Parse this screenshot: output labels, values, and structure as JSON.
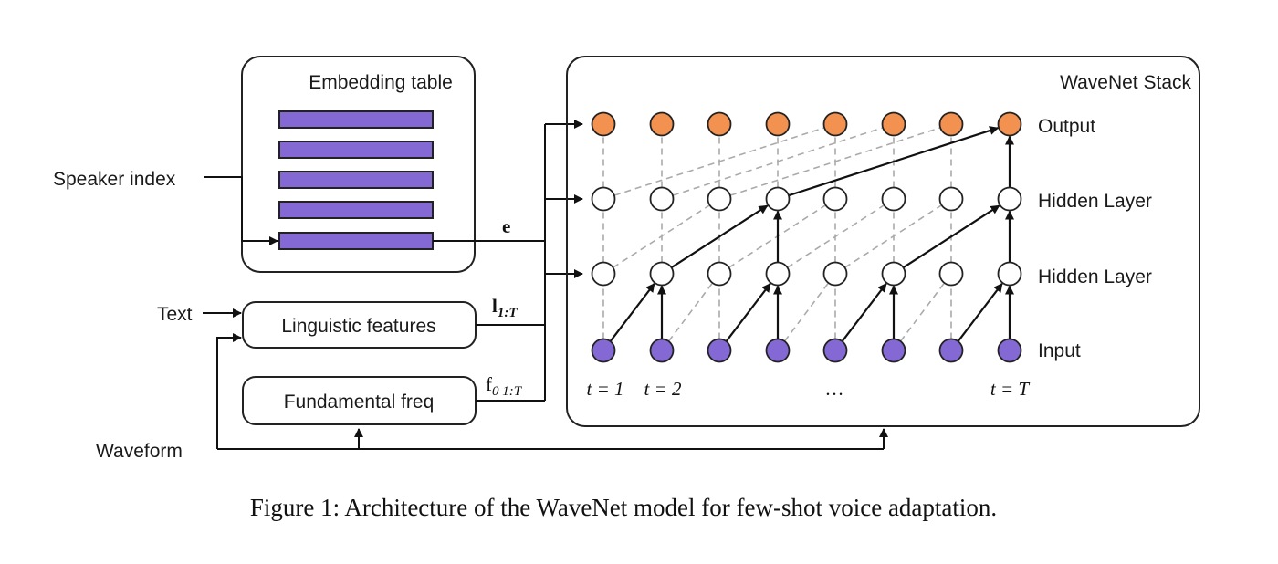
{
  "embedding": {
    "title": "Embedding table"
  },
  "wavenet": {
    "title": "WaveNet Stack",
    "layers": {
      "output": "Output",
      "hidden_top": "Hidden Layer",
      "hidden_bottom": "Hidden Layer",
      "input": "Input"
    },
    "time_labels": [
      "t = 1",
      "t = 2",
      "…",
      "t = T"
    ]
  },
  "inputs": {
    "speaker": "Speaker index",
    "text": "Text",
    "waveform": "Waveform"
  },
  "modules": {
    "linguistic": "Linguistic features",
    "f0": "Fundamental freq"
  },
  "math": {
    "e": "e",
    "l_main": "l",
    "l_sub": "1:T",
    "f_main": "f",
    "f_sub": "0 1:T"
  },
  "caption": "Figure 1: Architecture of the WaveNet model for few-shot voice adaptation.",
  "colors": {
    "output_node": "#f39150",
    "input_node": "#8469d4",
    "hidden_node": "#ffffff",
    "embedding_bar": "#8469d4",
    "dashed_edge": "#aaaaaa"
  }
}
